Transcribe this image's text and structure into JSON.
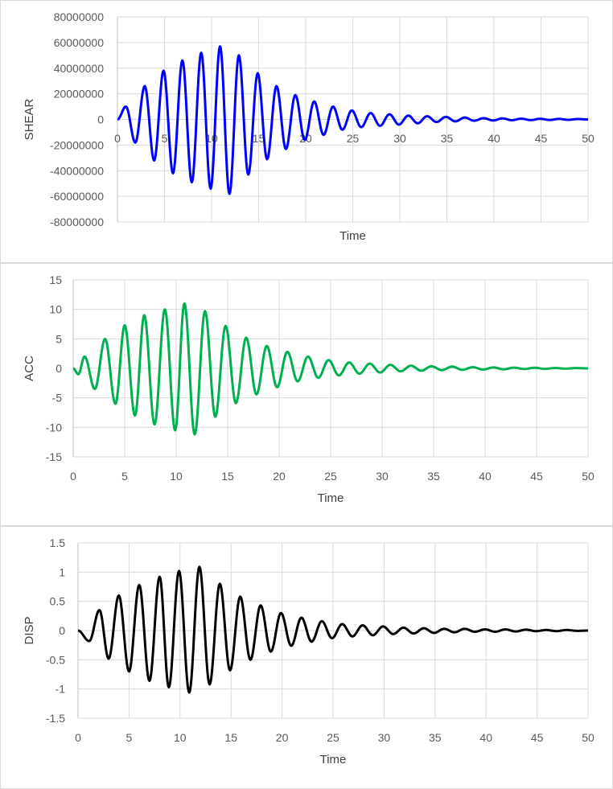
{
  "chart_data": [
    {
      "type": "line",
      "title": "",
      "xlabel": "Time",
      "ylabel": "SHEAR",
      "xlim": [
        0,
        50
      ],
      "ylim": [
        -80000000,
        80000000
      ],
      "x_ticks": [
        "0",
        "5",
        "10",
        "15",
        "20",
        "25",
        "30",
        "35",
        "40",
        "45",
        "50"
      ],
      "y_ticks": [
        "80000000",
        "60000000",
        "40000000",
        "20000000",
        "0",
        "-20000000",
        "-40000000",
        "-60000000",
        "-80000000"
      ],
      "grid": true,
      "legend": "none",
      "series": [
        {
          "color": "#0000ff",
          "x": [
            0,
            0.9,
            1.9,
            2.9,
            3.9,
            4.9,
            5.9,
            6.9,
            7.9,
            8.9,
            9.9,
            10.9,
            11.9,
            12.9,
            13.9,
            14.9,
            15.9,
            16.9,
            17.9,
            18.9,
            19.9,
            20.9,
            21.9,
            22.9,
            23.9,
            24.9,
            25.9,
            26.9,
            27.9,
            28.9,
            29.9,
            30.9,
            31.9,
            32.9,
            33.9,
            34.9,
            35.9,
            36.9,
            37.9,
            38.9,
            39.9,
            40.9,
            41.9,
            42.9,
            43.9,
            44.9,
            45.9,
            46.9,
            47.9,
            48.9,
            50
          ],
          "y": [
            0,
            10000000,
            -18000000,
            26000000,
            -32000000,
            38000000,
            -42000000,
            46000000,
            -49000000,
            52000000,
            -54000000,
            57000000,
            -58000000,
            50000000,
            -43000000,
            36000000,
            -31000000,
            26000000,
            -23000000,
            19000000,
            -16000000,
            14000000,
            -12000000,
            10000000,
            -8000000,
            7000000,
            -6000000,
            5000000,
            -5000000,
            4000000,
            -4000000,
            3000000,
            -3000000,
            2500000,
            -2000000,
            2000000,
            -1500000,
            1500000,
            -1000000,
            1000000,
            -800000,
            800000,
            -600000,
            600000,
            -500000,
            500000,
            -400000,
            400000,
            -300000,
            300000,
            0
          ]
        }
      ]
    },
    {
      "type": "line",
      "title": "",
      "xlabel": "Time",
      "ylabel": "ACC",
      "xlim": [
        0,
        50
      ],
      "ylim": [
        -15,
        15
      ],
      "x_ticks": [
        "0",
        "5",
        "10",
        "15",
        "20",
        "25",
        "30",
        "35",
        "40",
        "45",
        "50"
      ],
      "y_ticks": [
        "15",
        "10",
        "5",
        "0",
        "-5",
        "-10",
        "-15"
      ],
      "grid": true,
      "legend": "none",
      "series": [
        {
          "color": "#00b050",
          "x": [
            0,
            0.5,
            1.1,
            2.1,
            3.1,
            4.1,
            5.0,
            6.0,
            6.9,
            7.9,
            8.9,
            9.9,
            10.8,
            11.8,
            12.8,
            13.8,
            14.8,
            15.8,
            16.8,
            17.8,
            18.8,
            19.8,
            20.8,
            21.8,
            22.8,
            23.8,
            24.8,
            25.8,
            26.8,
            27.8,
            28.8,
            29.8,
            30.8,
            31.8,
            32.8,
            33.8,
            34.8,
            35.8,
            36.8,
            37.8,
            38.8,
            39.8,
            40.8,
            41.8,
            42.8,
            43.8,
            44.8,
            45.8,
            46.8,
            47.8,
            48.8,
            50
          ],
          "y": [
            0,
            -1,
            2,
            -3.5,
            5,
            -6,
            7.3,
            -8,
            9,
            -9.5,
            10,
            -10.5,
            11,
            -11.2,
            9.7,
            -8.2,
            7.2,
            -5.9,
            5.2,
            -4.4,
            3.8,
            -3.2,
            2.8,
            -2.2,
            2.0,
            -1.6,
            1.4,
            -1.2,
            1.0,
            -0.9,
            0.8,
            -0.7,
            0.6,
            -0.5,
            0.45,
            -0.4,
            0.35,
            -0.3,
            0.3,
            -0.25,
            0.2,
            -0.2,
            0.15,
            -0.15,
            0.12,
            -0.1,
            0.1,
            -0.08,
            0.06,
            -0.05,
            0.05,
            0
          ]
        }
      ]
    },
    {
      "type": "line",
      "title": "",
      "xlabel": "Time",
      "ylabel": "DISP",
      "xlim": [
        0,
        50
      ],
      "ylim": [
        -1.5,
        1.5
      ],
      "x_ticks": [
        "0",
        "5",
        "10",
        "15",
        "20",
        "25",
        "30",
        "35",
        "40",
        "45",
        "50"
      ],
      "y_ticks": [
        "1.5",
        "1",
        "0.5",
        "0",
        "-0.5",
        "-1",
        "-1.5"
      ],
      "grid": true,
      "legend": "none",
      "series": [
        {
          "color": "#000000",
          "x": [
            0,
            1.1,
            2.1,
            3.0,
            4.0,
            5.0,
            6.0,
            7.0,
            8.0,
            8.9,
            9.9,
            10.9,
            11.9,
            12.9,
            13.9,
            14.9,
            15.9,
            16.9,
            17.9,
            18.9,
            19.9,
            20.9,
            21.9,
            22.9,
            23.9,
            24.9,
            25.9,
            26.9,
            27.9,
            28.9,
            29.9,
            30.9,
            31.9,
            32.9,
            33.9,
            34.9,
            35.9,
            36.9,
            37.9,
            38.9,
            39.9,
            40.9,
            41.9,
            42.9,
            43.9,
            44.9,
            45.9,
            46.9,
            47.9,
            48.9,
            50
          ],
          "y": [
            0,
            -0.18,
            0.35,
            -0.48,
            0.6,
            -0.7,
            0.78,
            -0.86,
            0.92,
            -0.97,
            1.02,
            -1.06,
            1.09,
            -0.92,
            0.8,
            -0.68,
            0.58,
            -0.5,
            0.43,
            -0.36,
            0.3,
            -0.26,
            0.22,
            -0.19,
            0.16,
            -0.13,
            0.11,
            -0.1,
            0.09,
            -0.08,
            0.07,
            -0.06,
            0.05,
            -0.05,
            0.04,
            -0.04,
            0.03,
            -0.03,
            0.03,
            -0.02,
            0.02,
            -0.02,
            0.02,
            -0.015,
            0.015,
            -0.01,
            0.01,
            -0.01,
            0.01,
            -0.005,
            0
          ]
        }
      ]
    }
  ]
}
